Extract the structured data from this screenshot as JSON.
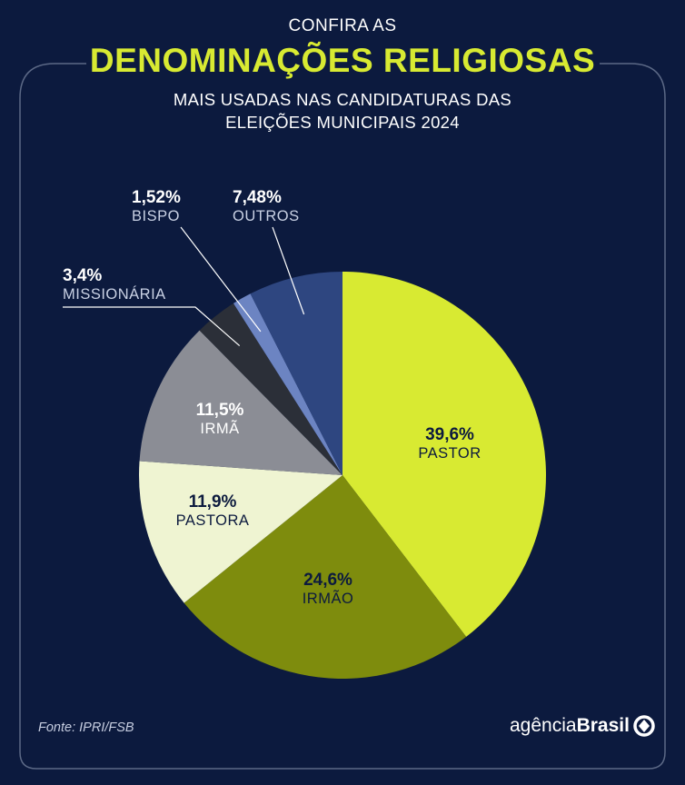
{
  "header": {
    "pre_title": "CONFIRA AS",
    "title": "DENOMINAÇÕES RELIGIOSAS",
    "subtitle_line1": "MAIS USADAS NAS CANDIDATURAS DAS",
    "subtitle_line2": "ELEIÇÕES MUNICIPAIS 2024"
  },
  "chart_data": {
    "type": "pie",
    "title": "DENOMINAÇÕES RELIGIOSAS",
    "slices": [
      {
        "name": "PASTOR",
        "value": 39.6,
        "label": "39,6%",
        "color": "#d8ea32"
      },
      {
        "name": "IRMÃO",
        "value": 24.6,
        "label": "24,6%",
        "color": "#7e8c0d"
      },
      {
        "name": "PASTORA",
        "value": 11.9,
        "label": "11,9%",
        "color": "#eff4d2"
      },
      {
        "name": "IRMÃ",
        "value": 11.5,
        "label": "11,5%",
        "color": "#8b8d95"
      },
      {
        "name": "MISSIONÁRIA",
        "value": 3.4,
        "label": "3,4%",
        "color": "#2b2f38"
      },
      {
        "name": "BISPO",
        "value": 1.52,
        "label": "1,52%",
        "color": "#6c84c2"
      },
      {
        "name": "OUTROS",
        "value": 7.48,
        "label": "7,48%",
        "color": "#2e4680"
      }
    ]
  },
  "footer": {
    "source": "Fonte:  IPRI/FSB",
    "logo_regular": "agência",
    "logo_bold": "Brasil"
  },
  "colors": {
    "background": "#0c1a3e",
    "accent": "#d8ea32",
    "frame": "#5c6986"
  }
}
